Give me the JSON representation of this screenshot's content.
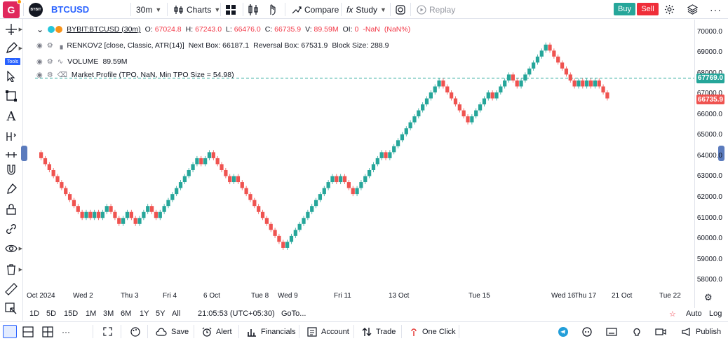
{
  "topbar": {
    "avatar_letter": "G",
    "exchange_logo": "BYBIT",
    "symbol": "BTCUSD",
    "interval": "30m",
    "charts_label": "Charts",
    "compare_label": "Compare",
    "study_label": "Study",
    "replay_label": "Replay",
    "buy_label": "Buy",
    "sell_label": "Sell"
  },
  "left_toolbar": {
    "tools_label": "Tools",
    "icons": [
      "crosshair-icon",
      "pencil-icon",
      "cursor-icon",
      "rectangle-icon",
      "text-icon",
      "measure-icon",
      "ruler-h-icon",
      "magnet-icon",
      "brush-icon",
      "lock-icon",
      "link-icon",
      "eye-icon",
      "trash-icon",
      "ruler-icon",
      "object-tree-icon"
    ]
  },
  "legend": {
    "main_symbol": "BYBIT:BTCUSD (30m)",
    "o_label": "O:",
    "o_value": "67024.8",
    "h_label": "H:",
    "h_value": "67243.0",
    "l_label": "L:",
    "l_value": "66476.0",
    "c_label": "C:",
    "c_value": "66735.9",
    "v_label": "V:",
    "v_value": "89.59M",
    "oi_label": "OI:",
    "oi_value": "0",
    "change": "-NaN",
    "change_pct": "(NaN%)",
    "renko_name": "RENKOV2 [close, Classic, ATR(14)]",
    "renko_next_label": "Next Box:",
    "renko_next": "66187.1",
    "renko_rev_label": "Reversal Box:",
    "renko_rev": "67531.9",
    "renko_block_label": "Block Size:",
    "renko_block": "288.9",
    "volume_name": "VOLUME",
    "volume_value": "89.59M",
    "mp_name": "Market Profile (TPO, NaN, Min TPO Size = 54.98)"
  },
  "price_axis": {
    "labels": [
      "70000.0",
      "69000.0",
      "68000.0",
      "67000.0",
      "66000.0",
      "65000.0",
      "64000.0",
      "63000.0",
      "62000.0",
      "61000.0",
      "60000.0",
      "59000.0",
      "58000.0"
    ],
    "tag_line": "67769.0",
    "tag_last": "66735.9",
    "color_line": "#26a69a",
    "color_last": "#ef5350"
  },
  "time_axis": {
    "labels": [
      "Oct 2024",
      "Wed 2",
      "Thu 3",
      "Fri 4",
      "6 Oct",
      "Tue 8",
      "Wed 9",
      "Fri 11",
      "13 Oct",
      "Tue 15",
      "Wed 16",
      "Thu 17",
      "21 Oct",
      "Tue 22"
    ]
  },
  "range_bar": {
    "ranges": [
      "1D",
      "5D",
      "15D",
      "1M",
      "3M",
      "6M",
      "1Y",
      "5Y",
      "All"
    ],
    "clock": "21:05:53 (UTC+05:30)",
    "goto": "GoTo...",
    "auto": "Auto",
    "log": "Log"
  },
  "bottom_toolbar": {
    "save": "Save",
    "alert": "Alert",
    "financials": "Financials",
    "account": "Account",
    "trade": "Trade",
    "one_click": "One Click",
    "publish": "Publish"
  },
  "chart_data": {
    "type": "renko",
    "symbol": "BYBIT:BTCUSD",
    "interval": "30m",
    "block_size": 288.9,
    "ylim": [
      57600,
      70600
    ],
    "up_color": "#26a69a",
    "down_color": "#ef5350",
    "dashed_line_price": 67769.0,
    "last_price": 66735.9,
    "closes": [
      63900,
      63611,
      63322,
      63033,
      62744,
      62455,
      62166,
      61877,
      61588,
      61299,
      61010,
      61299,
      61010,
      61299,
      61010,
      61299,
      61588,
      61299,
      61010,
      60721,
      61010,
      61299,
      61010,
      60721,
      61010,
      61299,
      61588,
      61299,
      61010,
      61299,
      61588,
      61877,
      62166,
      62455,
      62744,
      63033,
      63322,
      63611,
      63900,
      63611,
      63900,
      64189,
      63900,
      63611,
      63322,
      63033,
      62744,
      63033,
      62744,
      62455,
      62166,
      61877,
      61588,
      61299,
      61010,
      60721,
      60432,
      60143,
      59854,
      59565,
      59854,
      60143,
      60432,
      60721,
      61010,
      61299,
      61588,
      61877,
      62166,
      62455,
      62744,
      63033,
      62744,
      63033,
      62744,
      62455,
      62166,
      62455,
      62744,
      63033,
      63322,
      63611,
      63900,
      64189,
      63900,
      64189,
      64478,
      64767,
      65056,
      65345,
      65634,
      65923,
      66212,
      66501,
      66790,
      67079,
      67368,
      67657,
      67368,
      67079,
      66790,
      66501,
      66212,
      65923,
      65634,
      65923,
      66212,
      66501,
      66790,
      67079,
      66790,
      67079,
      67368,
      67657,
      67946,
      67657,
      67368,
      67657,
      67946,
      68235,
      68524,
      68813,
      69102,
      69391,
      69102,
      68813,
      68524,
      68235,
      67946,
      67657,
      67368,
      67657,
      67368,
      67657,
      67368,
      67657,
      67368,
      67079,
      66790
    ]
  }
}
